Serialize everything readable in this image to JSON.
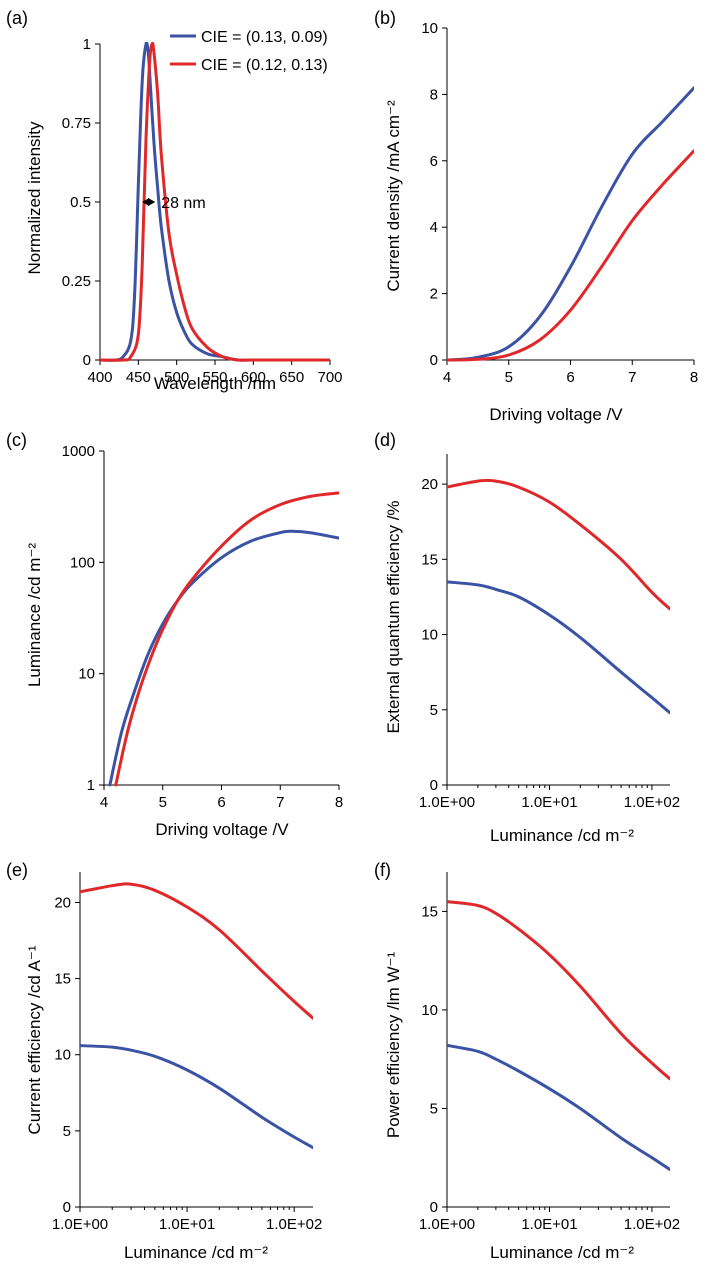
{
  "colors": {
    "blue": "#3a53a4",
    "red": "#e0282a",
    "axis": "#000000"
  },
  "chart_data": [
    {
      "id": "a",
      "panel_label": "(a)",
      "type": "line",
      "xlabel": "Wavelength /nm",
      "ylabel": "Normalized intensity",
      "xlim": [
        400,
        700
      ],
      "ylim": [
        0,
        1
      ],
      "yscale": "linear",
      "xticks": [
        400,
        450,
        500,
        550,
        600,
        650,
        700
      ],
      "xtick_labels": [
        "400",
        "450",
        "500",
        "550",
        "600",
        "650",
        "700"
      ],
      "yticks": [
        0,
        0.25,
        0.5,
        0.75,
        1
      ],
      "ytick_labels": [
        "0",
        "0.25",
        "0.5",
        "0.75",
        "1"
      ],
      "legend": "top-right",
      "annotation": {
        "text": "28 nm",
        "from": 455,
        "to": 472,
        "y": 0.5
      },
      "series": [
        {
          "name": "CIE = (0.13, 0.09)",
          "color": "blue",
          "x": [
            400,
            420,
            430,
            440,
            445,
            450,
            455,
            460,
            463,
            465,
            470,
            475,
            480,
            490,
            500,
            510,
            520,
            540,
            560,
            580,
            600,
            700
          ],
          "y": [
            0,
            0,
            0.01,
            0.06,
            0.2,
            0.55,
            0.88,
            1,
            0.97,
            0.9,
            0.7,
            0.55,
            0.42,
            0.25,
            0.15,
            0.09,
            0.05,
            0.02,
            0.01,
            0,
            0,
            0
          ]
        },
        {
          "name": "CIE = (0.12, 0.13)",
          "color": "red",
          "x": [
            400,
            430,
            440,
            450,
            455,
            460,
            465,
            468,
            470,
            475,
            480,
            490,
            500,
            510,
            520,
            540,
            560,
            580,
            600,
            700
          ],
          "y": [
            0,
            0,
            0.01,
            0.08,
            0.3,
            0.7,
            0.95,
            1,
            0.98,
            0.85,
            0.65,
            0.4,
            0.27,
            0.17,
            0.1,
            0.04,
            0.01,
            0,
            0,
            0
          ]
        }
      ]
    },
    {
      "id": "b",
      "panel_label": "(b)",
      "type": "line",
      "xlabel": "Driving voltage /V",
      "ylabel": "Current density /mA cm⁻²",
      "xlim": [
        4,
        8
      ],
      "ylim": [
        0,
        10
      ],
      "yscale": "linear",
      "xticks": [
        4,
        5,
        6,
        7,
        8
      ],
      "xtick_labels": [
        "4",
        "5",
        "6",
        "7",
        "8"
      ],
      "yticks": [
        0,
        2,
        4,
        6,
        8,
        10
      ],
      "ytick_labels": [
        "0",
        "2",
        "4",
        "6",
        "8",
        "10"
      ],
      "series": [
        {
          "name": "CIE = (0.13, 0.09)",
          "color": "blue",
          "x": [
            4,
            4.5,
            5,
            5.5,
            6,
            6.5,
            7,
            7.5,
            8
          ],
          "y": [
            0,
            0.08,
            0.4,
            1.3,
            2.8,
            4.6,
            6.2,
            7.2,
            8.2
          ]
        },
        {
          "name": "CIE = (0.12, 0.13)",
          "color": "red",
          "x": [
            4,
            4.5,
            5,
            5.5,
            6,
            6.5,
            7,
            7.5,
            8
          ],
          "y": [
            0,
            0.02,
            0.15,
            0.6,
            1.5,
            2.8,
            4.2,
            5.3,
            6.3
          ]
        }
      ]
    },
    {
      "id": "c",
      "panel_label": "(c)",
      "type": "line",
      "xlabel": "Driving voltage /V",
      "ylabel": "Luminance /cd m⁻²",
      "xlim": [
        4,
        8
      ],
      "ylim": [
        1,
        1000
      ],
      "yscale": "log",
      "xticks": [
        4,
        5,
        6,
        7,
        8
      ],
      "xtick_labels": [
        "4",
        "5",
        "6",
        "7",
        "8"
      ],
      "yticks": [
        1,
        10,
        100,
        1000
      ],
      "ytick_labels": [
        "1",
        "10",
        "100",
        "1000"
      ],
      "series": [
        {
          "name": "CIE = (0.13, 0.09)",
          "color": "blue",
          "x": [
            4.1,
            4.3,
            4.5,
            4.75,
            5,
            5.25,
            5.5,
            6,
            6.5,
            7,
            7.2,
            7.5,
            8
          ],
          "y": [
            1,
            3,
            6.5,
            15,
            28,
            45,
            65,
            110,
            155,
            185,
            190,
            185,
            165
          ]
        },
        {
          "name": "CIE = (0.12, 0.13)",
          "color": "red",
          "x": [
            4.2,
            4.4,
            4.6,
            4.8,
            5,
            5.25,
            5.5,
            6,
            6.5,
            7,
            7.5,
            8
          ],
          "y": [
            1,
            3,
            7,
            14,
            25,
            45,
            70,
            140,
            240,
            330,
            390,
            420
          ]
        }
      ]
    },
    {
      "id": "d",
      "panel_label": "(d)",
      "type": "line",
      "xlabel": "Luminance /cd m⁻²",
      "ylabel": "External quantum efficiency /%",
      "xlim": [
        1,
        150
      ],
      "ylim": [
        0,
        22
      ],
      "xscale": "log",
      "yscale": "linear",
      "xticks": [
        1,
        10,
        100
      ],
      "xtick_labels": [
        "1.0E+00",
        "1.0E+01",
        "1.0E+02"
      ],
      "yticks": [
        0,
        5,
        10,
        15,
        20
      ],
      "ytick_labels": [
        "0",
        "5",
        "10",
        "15",
        "20"
      ],
      "series": [
        {
          "name": "CIE = (0.13, 0.09)",
          "color": "blue",
          "x": [
            1,
            2,
            3,
            5,
            10,
            20,
            50,
            100,
            150
          ],
          "y": [
            13.5,
            13.3,
            13.0,
            12.5,
            11.3,
            9.8,
            7.5,
            5.8,
            4.8
          ]
        },
        {
          "name": "CIE = (0.12, 0.13)",
          "color": "red",
          "x": [
            1,
            2,
            3,
            5,
            10,
            20,
            50,
            100,
            150
          ],
          "y": [
            19.8,
            20.2,
            20.2,
            19.8,
            18.8,
            17.3,
            15.0,
            12.8,
            11.7
          ]
        }
      ]
    },
    {
      "id": "e",
      "panel_label": "(e)",
      "type": "line",
      "xlabel": "Luminance /cd m⁻²",
      "ylabel": "Current efficiency /cd A⁻¹",
      "xlim": [
        1,
        150
      ],
      "ylim": [
        0,
        22
      ],
      "xscale": "log",
      "yscale": "linear",
      "xticks": [
        1,
        10,
        100
      ],
      "xtick_labels": [
        "1.0E+00",
        "1.0E+01",
        "1.0E+02"
      ],
      "yticks": [
        0,
        5,
        10,
        15,
        20
      ],
      "ytick_labels": [
        "0",
        "5",
        "10",
        "15",
        "20"
      ],
      "series": [
        {
          "name": "CIE = (0.13, 0.09)",
          "color": "blue",
          "x": [
            1,
            2,
            3,
            5,
            10,
            20,
            50,
            100,
            150
          ],
          "y": [
            10.6,
            10.5,
            10.3,
            9.9,
            9.0,
            7.8,
            5.9,
            4.6,
            3.9
          ]
        },
        {
          "name": "CIE = (0.12, 0.13)",
          "color": "red",
          "x": [
            1,
            2,
            3,
            5,
            10,
            20,
            50,
            100,
            150
          ],
          "y": [
            20.7,
            21.1,
            21.2,
            20.8,
            19.7,
            18.2,
            15.5,
            13.5,
            12.4
          ]
        }
      ]
    },
    {
      "id": "f",
      "panel_label": "(f)",
      "type": "line",
      "xlabel": "Luminance /cd m⁻²",
      "ylabel": "Power efficiency /lm W⁻¹",
      "xlim": [
        1,
        150
      ],
      "ylim": [
        0,
        17
      ],
      "xscale": "log",
      "yscale": "linear",
      "xticks": [
        1,
        10,
        100
      ],
      "xtick_labels": [
        "1.0E+00",
        "1.0E+01",
        "1.0E+02"
      ],
      "yticks": [
        0,
        5,
        10,
        15
      ],
      "ytick_labels": [
        "0",
        "5",
        "10",
        "15"
      ],
      "series": [
        {
          "name": "CIE = (0.13, 0.09)",
          "color": "blue",
          "x": [
            1,
            2,
            3,
            5,
            10,
            20,
            50,
            100,
            150
          ],
          "y": [
            8.2,
            7.9,
            7.5,
            6.9,
            6.0,
            5.0,
            3.5,
            2.5,
            1.9
          ]
        },
        {
          "name": "CIE = (0.12, 0.13)",
          "color": "red",
          "x": [
            1,
            2,
            3,
            5,
            10,
            20,
            50,
            100,
            150
          ],
          "y": [
            15.5,
            15.3,
            14.9,
            14.1,
            12.8,
            11.2,
            8.8,
            7.3,
            6.5
          ]
        }
      ]
    }
  ]
}
